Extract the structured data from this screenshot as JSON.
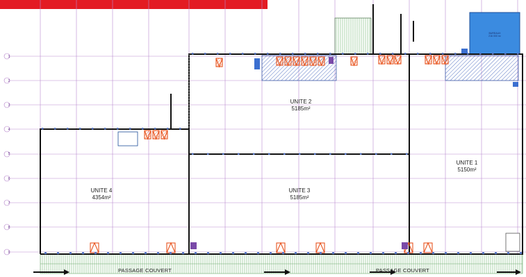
{
  "colors": {
    "header_bar": "#e31b23",
    "grid_line": "#b07ac7",
    "wall": "#111111",
    "dock_orange": "#e8541e",
    "hatch_blue": "#5a78c4",
    "office_blue": "#3b8be0",
    "ground_green": "#7fbf7f"
  },
  "units": [
    {
      "name": "UNITE 1",
      "area": "5150m²"
    },
    {
      "name": "UNITE 2",
      "area": "5185m²"
    },
    {
      "name": "UNITE 3",
      "area": "5185m²"
    },
    {
      "name": "UNITE 4",
      "area": "4354m²"
    }
  ],
  "passages": [
    "PASSAGE COUVERT",
    "PASSAGE COUVERT"
  ],
  "row_labels": [
    "1",
    "2",
    "3",
    "4",
    "5",
    "6",
    "7",
    "8",
    "9"
  ],
  "office_label": "BUREAUX\n216 000 m²"
}
